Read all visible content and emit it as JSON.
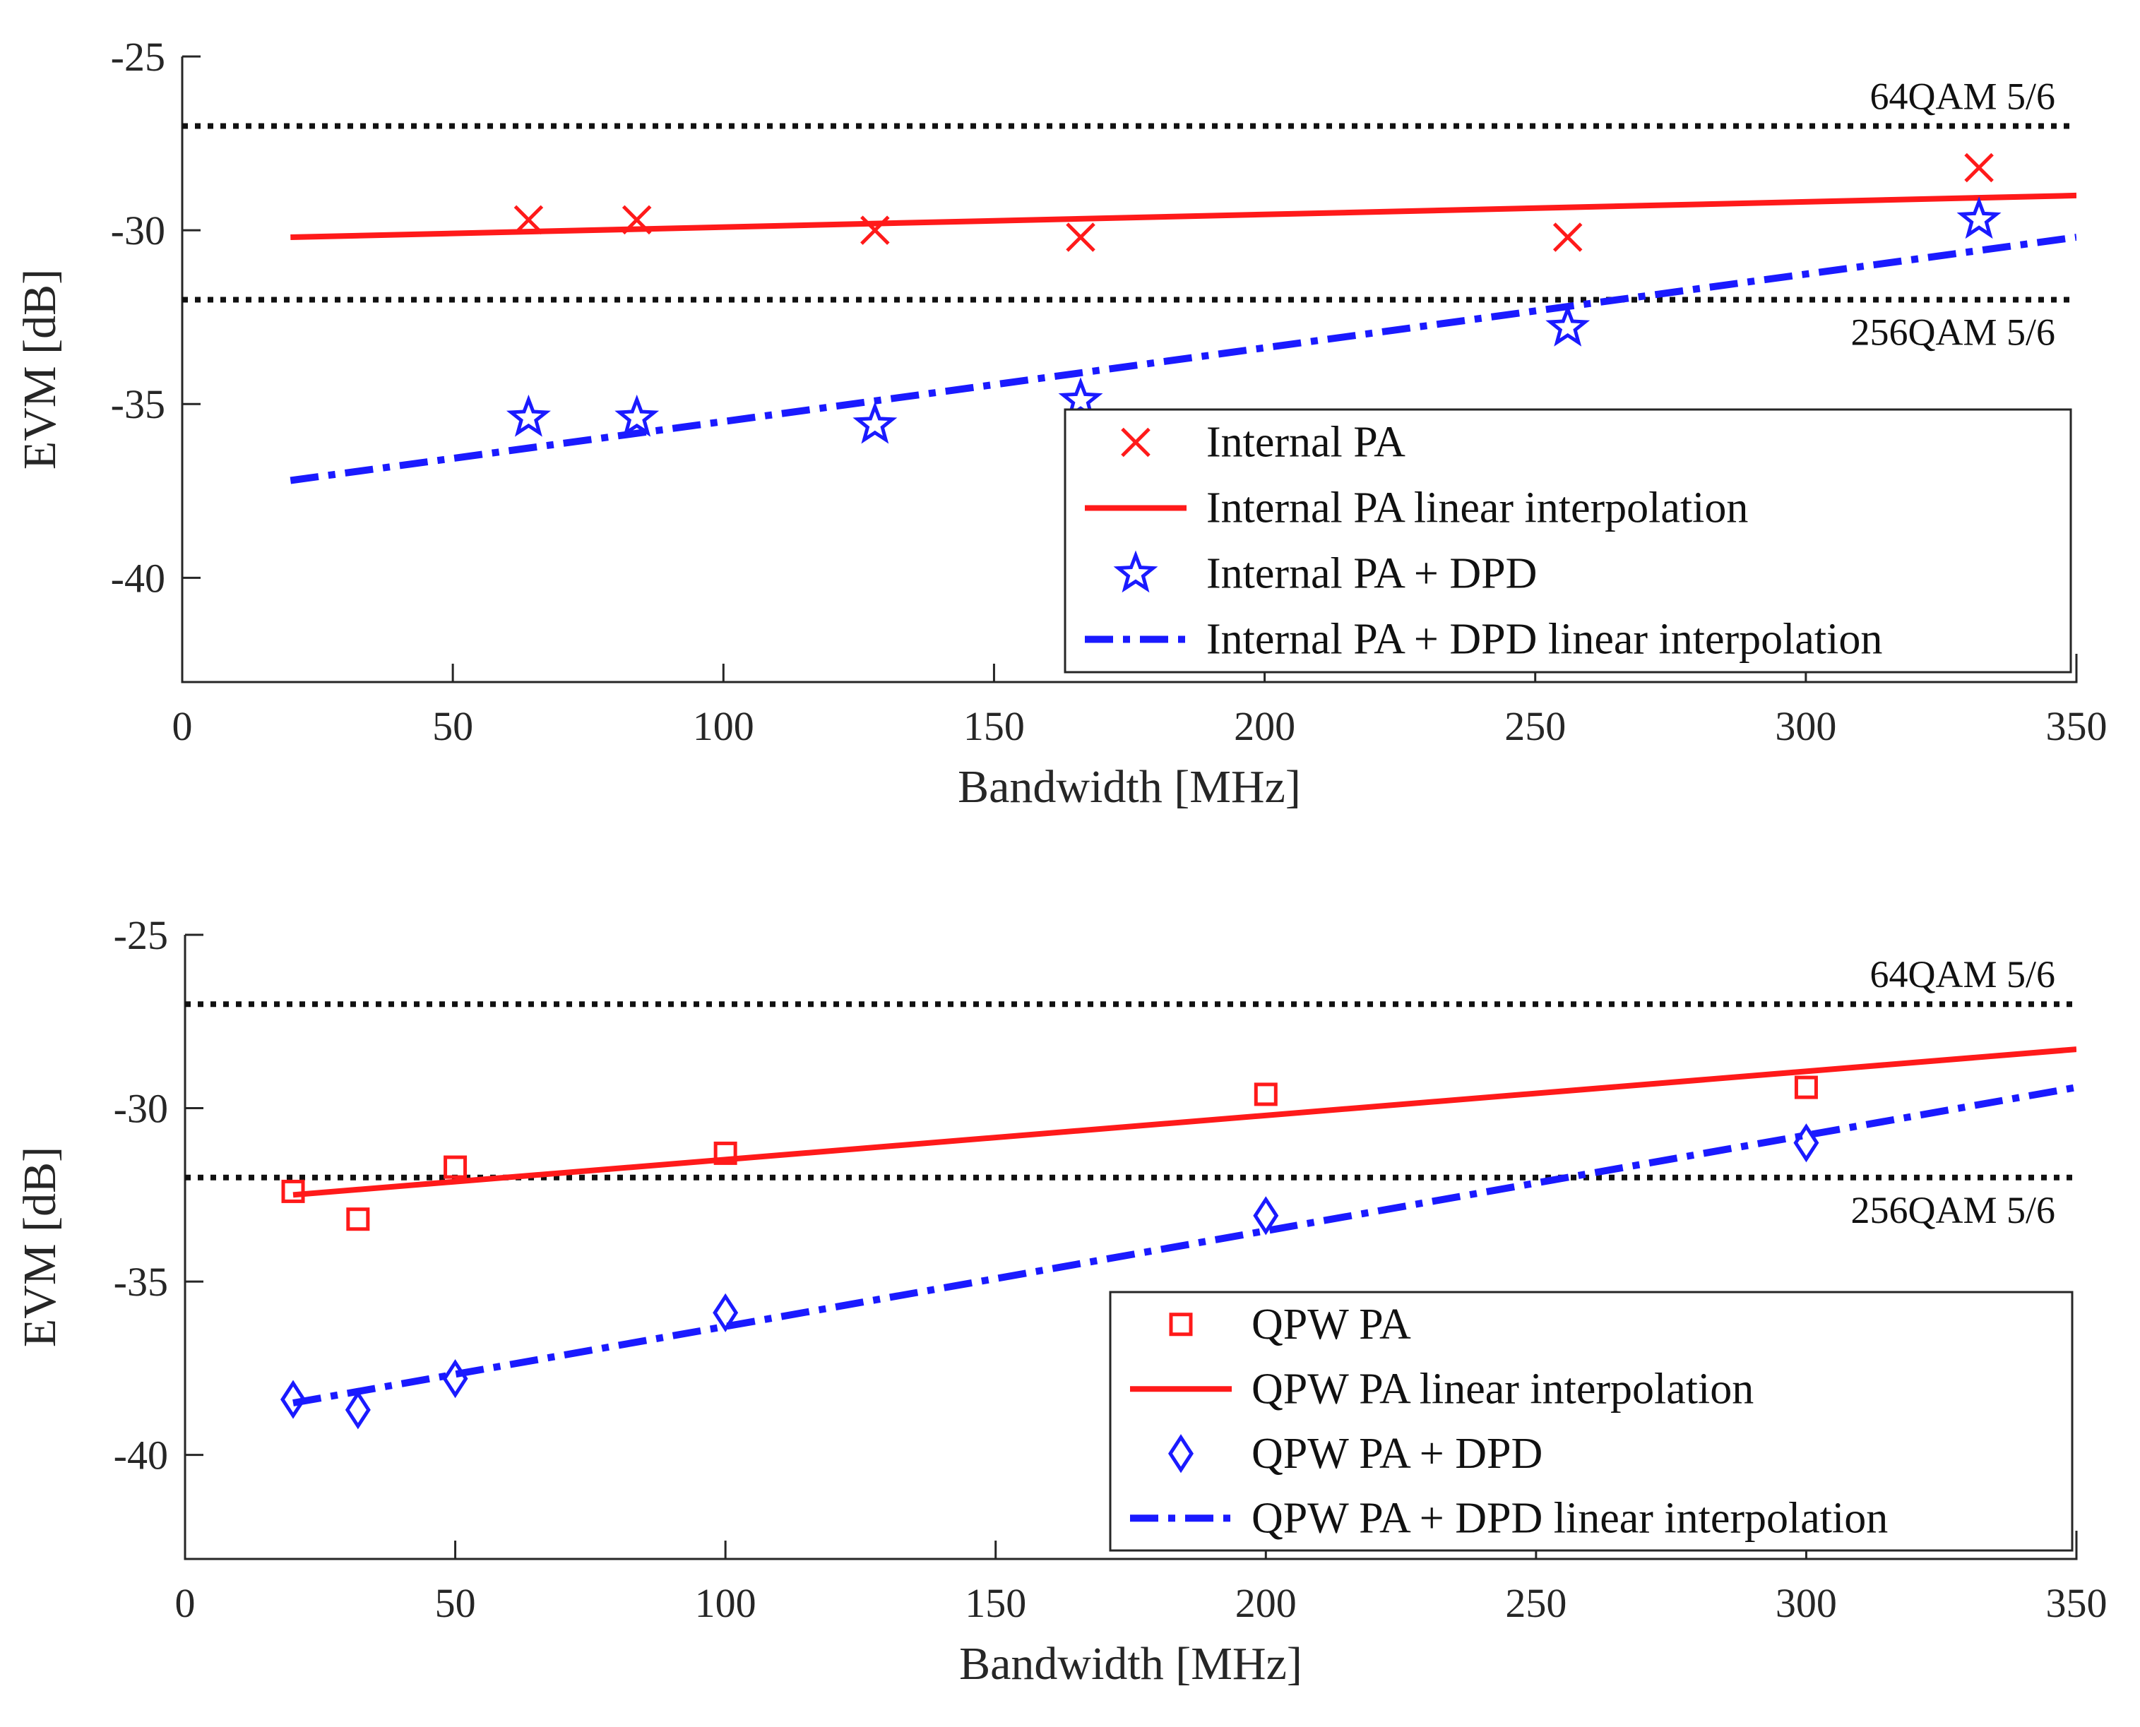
{
  "colors": {
    "axis": "#262626",
    "red": "#ff1a1a",
    "blue": "#1a1aff",
    "threshold": "#111111"
  },
  "chart_data": [
    {
      "type": "scatter",
      "xlabel": "Bandwidth [MHz]",
      "ylabel": "EVM [dB]",
      "xlim": [
        0,
        350
      ],
      "ylim": [
        -43,
        -25
      ],
      "xticks": [
        0,
        50,
        100,
        150,
        200,
        250,
        300,
        350
      ],
      "yticks": [
        -25,
        -30,
        -35,
        -40
      ],
      "legend_position": "bottom-right",
      "thresholds": [
        {
          "y": -27,
          "label": "64QAM 5/6",
          "label_side": "above"
        },
        {
          "y": -32,
          "label": "256QAM 5/6",
          "label_side": "below"
        }
      ],
      "series": [
        {
          "name": "Internal PA",
          "kind": "marker",
          "marker": "x",
          "color": "red",
          "x": [
            64,
            84,
            128,
            166,
            256,
            332
          ],
          "y": [
            -29.7,
            -29.7,
            -30.0,
            -30.2,
            -30.2,
            -28.2
          ]
        },
        {
          "name": "Internal PA linear interpolation",
          "kind": "line",
          "style": "solid",
          "color": "red",
          "x": [
            20,
            350
          ],
          "y": [
            -30.2,
            -29.0
          ]
        },
        {
          "name": "Internal PA + DPD",
          "kind": "marker",
          "marker": "star",
          "color": "blue",
          "x": [
            64,
            84,
            128,
            166,
            256,
            332
          ],
          "y": [
            -35.4,
            -35.4,
            -35.6,
            -34.9,
            -32.8,
            -29.7
          ]
        },
        {
          "name": "Internal PA + DPD linear interpolation",
          "kind": "line",
          "style": "dashdot",
          "color": "blue",
          "x": [
            20,
            350
          ],
          "y": [
            -37.2,
            -30.2
          ]
        }
      ]
    },
    {
      "type": "scatter",
      "xlabel": "Bandwidth [MHz]",
      "ylabel": "EVM [dB]",
      "xlim": [
        0,
        350
      ],
      "ylim": [
        -43,
        -25
      ],
      "xticks": [
        0,
        50,
        100,
        150,
        200,
        250,
        300,
        350
      ],
      "yticks": [
        -25,
        -30,
        -35,
        -40
      ],
      "legend_position": "bottom-right",
      "thresholds": [
        {
          "y": -27,
          "label": "64QAM 5/6",
          "label_side": "above"
        },
        {
          "y": -32,
          "label": "256QAM 5/6",
          "label_side": "below"
        }
      ],
      "series": [
        {
          "name": "QPW PA",
          "kind": "marker",
          "marker": "square",
          "color": "red",
          "x": [
            20,
            32,
            50,
            100,
            200,
            300
          ],
          "y": [
            -32.4,
            -33.2,
            -31.7,
            -31.3,
            -29.6,
            -29.4
          ]
        },
        {
          "name": "QPW PA linear interpolation",
          "kind": "line",
          "style": "solid",
          "color": "red",
          "x": [
            20,
            350
          ],
          "y": [
            -32.5,
            -28.3
          ]
        },
        {
          "name": "QPW PA + DPD",
          "kind": "marker",
          "marker": "diamond",
          "color": "blue",
          "x": [
            20,
            32,
            50,
            100,
            200,
            300
          ],
          "y": [
            -38.4,
            -38.7,
            -37.8,
            -35.9,
            -33.1,
            -31.0
          ]
        },
        {
          "name": "QPW PA + DPD linear interpolation",
          "kind": "line",
          "style": "dashdot",
          "color": "blue",
          "x": [
            20,
            350
          ],
          "y": [
            -38.5,
            -29.4
          ]
        }
      ]
    }
  ]
}
